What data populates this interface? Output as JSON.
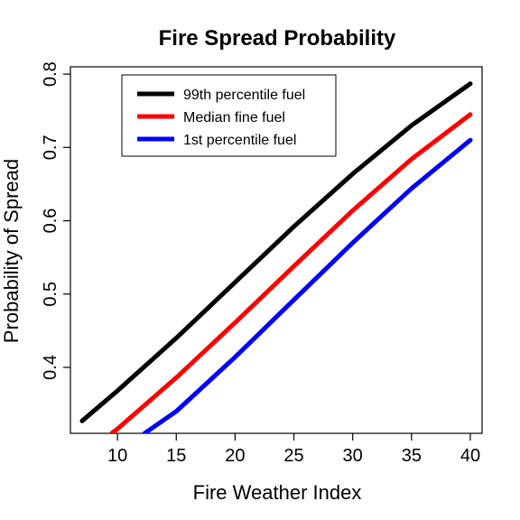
{
  "chart_data": {
    "type": "line",
    "title": "Fire Spread Probability",
    "xlabel": "Fire Weather Index",
    "ylabel": "Probability of Spread",
    "xlim": [
      6,
      41
    ],
    "ylim": [
      0.31,
      0.81
    ],
    "xticks": [
      10,
      15,
      20,
      25,
      30,
      35,
      40
    ],
    "yticks": [
      0.4,
      0.5,
      0.6,
      0.7,
      0.8
    ],
    "grid": false,
    "legend_position": "top-left",
    "series": [
      {
        "name": "99th percentile fuel",
        "color": "#000000",
        "x": [
          7,
          10,
          15,
          20,
          25,
          30,
          35,
          40
        ],
        "y": [
          0.327,
          0.368,
          0.44,
          0.516,
          0.592,
          0.664,
          0.73,
          0.787
        ]
      },
      {
        "name": "Median fine fuel",
        "color": "#ff0000",
        "x": [
          9.5,
          10,
          15,
          20,
          25,
          30,
          35,
          40
        ],
        "y": [
          0.31,
          0.316,
          0.386,
          0.461,
          0.538,
          0.614,
          0.684,
          0.745
        ]
      },
      {
        "name": "1st percentile fuel",
        "color": "#0000ff",
        "x": [
          12.3,
          15,
          20,
          25,
          30,
          35,
          40
        ],
        "y": [
          0.31,
          0.34,
          0.414,
          0.492,
          0.57,
          0.644,
          0.71
        ]
      }
    ]
  }
}
